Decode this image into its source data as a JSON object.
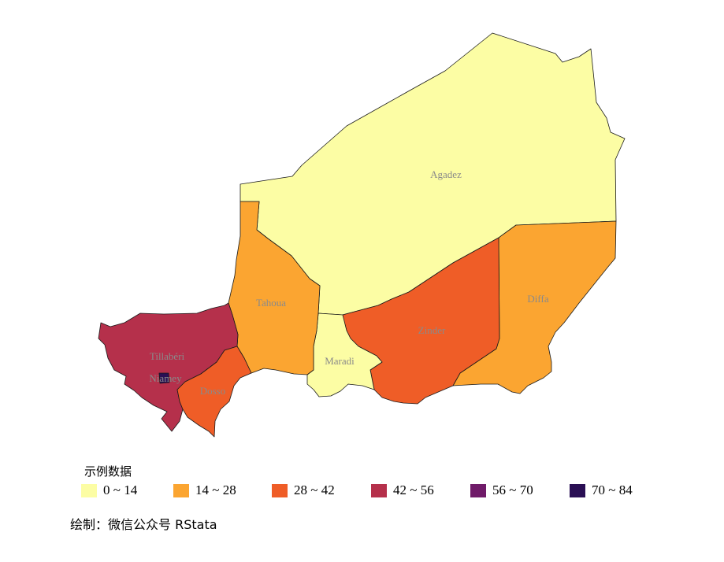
{
  "legend": {
    "title": "示例数据",
    "items": [
      {
        "label": "0 ~ 14",
        "color": "#FCFDA4"
      },
      {
        "label": "14 ~ 28",
        "color": "#FBA531"
      },
      {
        "label": "28 ~ 42",
        "color": "#EF5D27"
      },
      {
        "label": "42 ~ 56",
        "color": "#B5304B"
      },
      {
        "label": "56 ~ 70",
        "color": "#701B69"
      },
      {
        "label": "70 ~ 84",
        "color": "#2A0F54"
      }
    ]
  },
  "regions": [
    {
      "name": "Agadez",
      "color": "#FCFDA4"
    },
    {
      "name": "Diffa",
      "color": "#FBA531"
    },
    {
      "name": "Zinder",
      "color": "#EF5D27"
    },
    {
      "name": "Maradi",
      "color": "#FCFDA4"
    },
    {
      "name": "Tahoua",
      "color": "#FBA531"
    },
    {
      "name": "Tillabéri",
      "color": "#B5304B"
    },
    {
      "name": "Dosso",
      "color": "#EF5D27"
    },
    {
      "name": "Niamey",
      "color": "#2A0F54"
    }
  ],
  "caption": "绘制：微信公众号 RStata"
}
